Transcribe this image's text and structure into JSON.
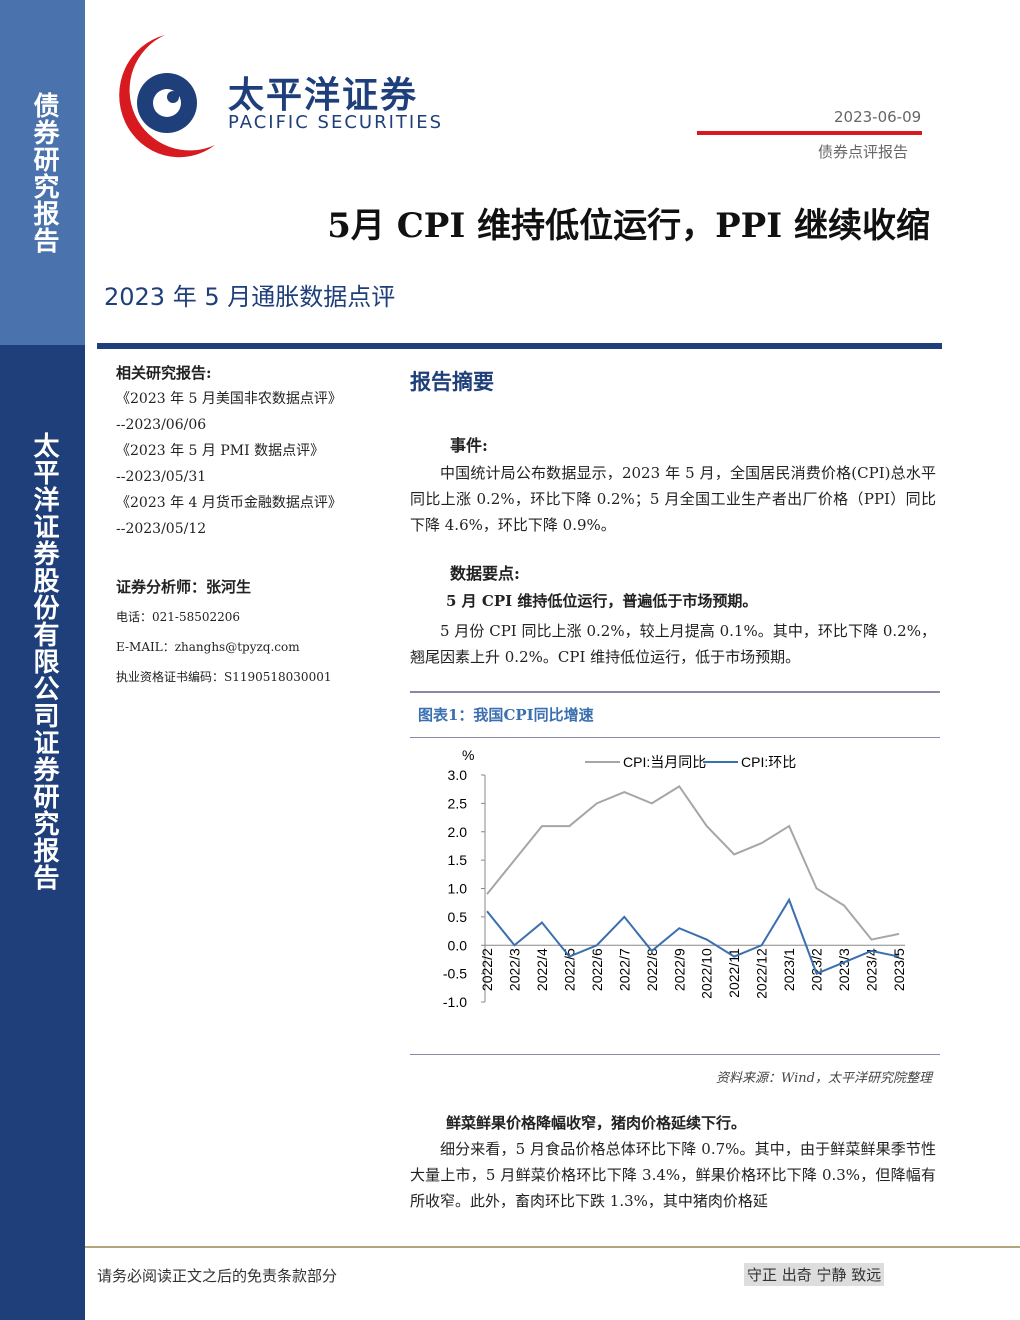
{
  "sidebar": {
    "top": "债券研究报告",
    "bottom": "太平洋证券股份有限公司证券研究报告"
  },
  "header": {
    "logo_cn": "太平洋证券",
    "logo_en": "PACIFIC SECURITIES",
    "date": "2023-06-09",
    "report_type": "债券点评报告",
    "title": "5月 CPI 维持低位运行，PPI 继续收缩",
    "subtitle": "2023 年 5 月通胀数据点评"
  },
  "related": {
    "heading": "相关研究报告:",
    "items": [
      {
        "title": "《2023 年 5 月美国非农数据点评》",
        "date": "--2023/06/06"
      },
      {
        "title": "《2023 年 5 月 PMI 数据点评》",
        "date": "--2023/05/31"
      },
      {
        "title": "《2023 年 4 月货币金融数据点评》",
        "date": "--2023/05/12"
      }
    ]
  },
  "analyst": {
    "heading": "证券分析师：张河生",
    "phone": "电话：021-58502206",
    "email": "E-MAIL：zhanghs@tpyzq.com",
    "license": "执业资格证书编码：S1190518030001"
  },
  "summary": {
    "heading": "报告摘要",
    "event_heading": "事件:",
    "event_text": "中国统计局公布数据显示，2023 年 5 月，全国居民消费价格(CPI)总水平同比上涨 0.2%，环比下降 0.2%；5 月全国工业生产者出厂价格（PPI）同比下降 4.6%，环比下降 0.9%。",
    "points_heading": "数据要点:",
    "point1_heading": "5 月 CPI 维持低位运行，普遍低于市场预期。",
    "point1_text": "5 月份 CPI 同比上涨 0.2%，较上月提高 0.1%。其中，环比下降 0.2%，翘尾因素上升 0.2%。CPI 维持低位运行，低于市场预期。",
    "point2_heading": "鲜菜鲜果价格降幅收窄，猪肉价格延续下行。",
    "point2_text": "细分来看，5 月食品价格总体环比下降 0.7%。其中，由于鲜菜鲜果季节性大量上市，5 月鲜菜价格环比下降 3.4%，鲜果价格环比下降 0.3%，但降幅有所收窄。此外，畜肉环比下跌 1.3%，其中猪肉价格延"
  },
  "chart_caption": "图表1：我国CPI同比增速",
  "chart_data": {
    "type": "line",
    "y_label": "%",
    "categories": [
      "2022/2",
      "2022/3",
      "2022/4",
      "2022/5",
      "2022/6",
      "2022/7",
      "2022/8",
      "2022/9",
      "2022/10",
      "2022/11",
      "2022/12",
      "2023/1",
      "2023/2",
      "2023/3",
      "2023/4",
      "2023/5"
    ],
    "series": [
      {
        "name": "CPI:当月同比",
        "color": "#a6a6a6",
        "values": [
          0.9,
          1.5,
          2.1,
          2.1,
          2.5,
          2.7,
          2.5,
          2.8,
          2.1,
          1.6,
          1.8,
          2.1,
          1.0,
          0.7,
          0.1,
          0.2
        ]
      },
      {
        "name": "CPI:环比",
        "color": "#3a6fb0",
        "values": [
          0.6,
          0.0,
          0.4,
          -0.2,
          0.0,
          0.5,
          -0.1,
          0.3,
          0.1,
          -0.2,
          0.0,
          0.8,
          -0.5,
          -0.3,
          -0.1,
          -0.2
        ]
      }
    ],
    "ylim": [
      -1,
      3
    ],
    "yticks": [
      {
        "value": -1,
        "label": "-1.0"
      },
      {
        "value": -0.5,
        "label": "-0.5"
      },
      {
        "value": 0,
        "label": "0.0"
      },
      {
        "value": 0.5,
        "label": "0.5"
      },
      {
        "value": 1,
        "label": "1.0"
      },
      {
        "value": 1.5,
        "label": "1.5"
      },
      {
        "value": 2,
        "label": "2.0"
      },
      {
        "value": 2.5,
        "label": "2.5"
      },
      {
        "value": 3,
        "label": "3.0"
      }
    ],
    "legend": "top"
  },
  "source": "资料来源：Wind，太平洋研究院整理",
  "footer": {
    "disclaimer": "请务必阅读正文之后的免责条款部分",
    "motto": "守正 出奇 宁静 致远"
  }
}
